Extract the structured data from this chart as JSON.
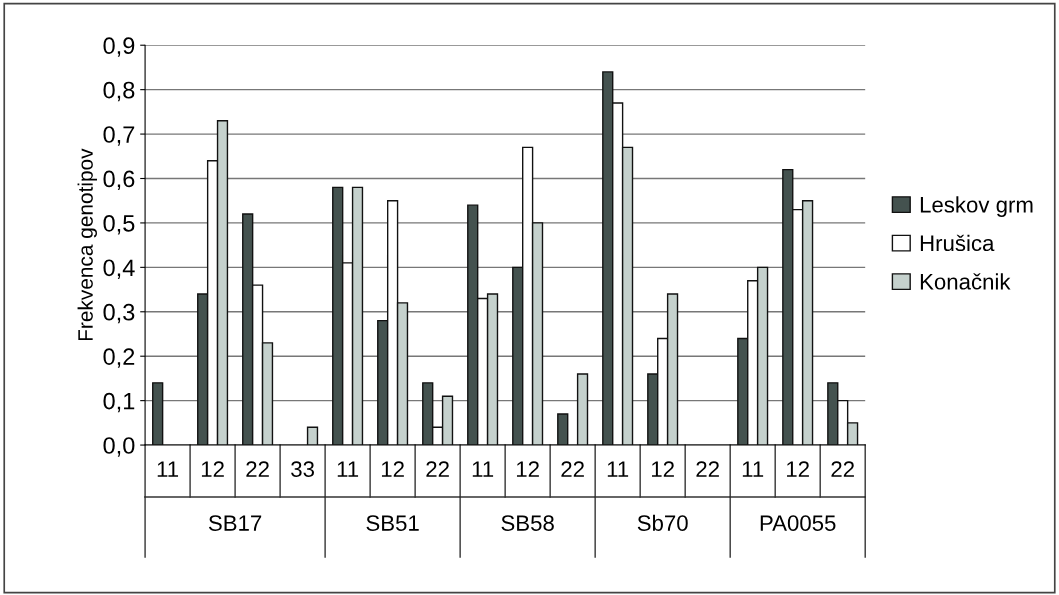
{
  "chart_data": {
    "type": "bar",
    "ylabel": "Frekvenca genotipov",
    "categories": [
      "11",
      "12",
      "22",
      "33",
      "11",
      "12",
      "22",
      "11",
      "12",
      "22",
      "11",
      "12",
      "22",
      "11",
      "12",
      "22"
    ],
    "series": [
      {
        "name": "Leskov grm",
        "color": "#44524f",
        "values": [
          0.14,
          0.34,
          0.52,
          0,
          0.58,
          0.28,
          0.14,
          0.54,
          0.4,
          0.07,
          0.84,
          0.16,
          0,
          0.24,
          0.62,
          0.14
        ]
      },
      {
        "name": "Hrušica",
        "color": "#ffffff",
        "values": [
          0,
          0.64,
          0.36,
          0,
          0.41,
          0.55,
          0.04,
          0.33,
          0.67,
          0,
          0.77,
          0.24,
          0,
          0.37,
          0.53,
          0.1
        ]
      },
      {
        "name": "Konačnik",
        "color": "#c5d1cd",
        "values": [
          0,
          0.73,
          0.23,
          0.04,
          0.58,
          0.32,
          0.11,
          0.34,
          0.5,
          0.16,
          0.67,
          0.34,
          0,
          0.4,
          0.55,
          0.05
        ]
      }
    ],
    "annotations": [
      "SB17",
      "SB51",
      "SB58",
      "Sb70",
      "PA0055"
    ],
    "ylim": [
      0,
      0.9
    ],
    "yticks": [
      {
        "value": 0,
        "label": "0,0"
      },
      {
        "value": 0.1,
        "label": "0,1"
      },
      {
        "value": 0.2,
        "label": "0,2"
      },
      {
        "value": 0.3,
        "label": "0,3"
      },
      {
        "value": 0.4,
        "label": "0,4"
      },
      {
        "value": 0.5,
        "label": "0,5"
      },
      {
        "value": 0.6,
        "label": "0,6"
      },
      {
        "value": 0.7,
        "label": "0,7"
      },
      {
        "value": 0.8,
        "label": "0,8"
      },
      {
        "value": 0.9,
        "label": "0,9"
      }
    ],
    "grid": "y",
    "legend": "right"
  }
}
